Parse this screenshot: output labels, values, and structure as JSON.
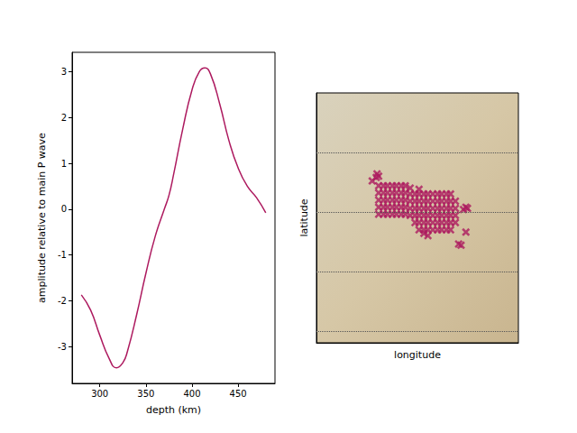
{
  "chart_data": [
    {
      "type": "line",
      "xlabel": "depth (km)",
      "ylabel": "amplitude relative to main P wave",
      "color": "#ad1a5f",
      "x": [
        280,
        290,
        300,
        310,
        318,
        325,
        330,
        340,
        350,
        360,
        370,
        375,
        380,
        390,
        400,
        408,
        414,
        420,
        430,
        440,
        450,
        460,
        470,
        480
      ],
      "values": [
        -1.87,
        -2.2,
        -2.75,
        -3.25,
        -3.46,
        -3.35,
        -3.1,
        -2.3,
        -1.4,
        -0.6,
        0.0,
        0.3,
        0.75,
        1.75,
        2.6,
        3.0,
        3.08,
        2.95,
        2.3,
        1.5,
        0.9,
        0.5,
        0.25,
        -0.08
      ],
      "xlim": [
        270,
        490
      ],
      "ylim": [
        -3.8,
        3.42
      ],
      "xticks": [
        300,
        350,
        400,
        450
      ],
      "yticks": [
        -3,
        -2,
        -1,
        0,
        1,
        2,
        3
      ]
    },
    {
      "type": "scatter",
      "xlabel": "longitude",
      "ylabel": "latitude",
      "color": "#ad1a5f",
      "marker": "x",
      "xlim": [
        -125,
        -100
      ],
      "ylim": [
        29,
        50
      ],
      "xticks": [],
      "yticks": [
        30,
        35,
        40,
        45
      ],
      "grid": true,
      "tick_labels": false,
      "points": [
        [
          -117.3,
          42.2
        ],
        [
          -116.7,
          42.2
        ],
        [
          -116.2,
          42.2
        ],
        [
          -115.6,
          42.2
        ],
        [
          -115.1,
          42.2
        ],
        [
          -114.5,
          42.2
        ],
        [
          -114.0,
          42.2
        ],
        [
          -117.3,
          41.6
        ],
        [
          -116.7,
          41.6
        ],
        [
          -116.2,
          41.6
        ],
        [
          -115.6,
          41.6
        ],
        [
          -115.1,
          41.6
        ],
        [
          -114.5,
          41.6
        ],
        [
          -114.0,
          41.6
        ],
        [
          -117.3,
          41.0
        ],
        [
          -116.7,
          41.0
        ],
        [
          -116.2,
          41.0
        ],
        [
          -115.6,
          41.0
        ],
        [
          -115.1,
          41.0
        ],
        [
          -114.5,
          41.0
        ],
        [
          -114.0,
          41.0
        ],
        [
          -117.3,
          40.4
        ],
        [
          -116.7,
          40.4
        ],
        [
          -116.2,
          40.4
        ],
        [
          -115.6,
          40.4
        ],
        [
          -115.1,
          40.4
        ],
        [
          -114.5,
          40.4
        ],
        [
          -114.0,
          40.4
        ],
        [
          -117.3,
          39.8
        ],
        [
          -116.7,
          39.8
        ],
        [
          -116.2,
          39.8
        ],
        [
          -115.6,
          39.8
        ],
        [
          -115.1,
          39.8
        ],
        [
          -114.5,
          39.8
        ],
        [
          -114.0,
          39.8
        ],
        [
          -113.4,
          41.5
        ],
        [
          -112.8,
          41.5
        ],
        [
          -112.3,
          41.5
        ],
        [
          -111.7,
          41.5
        ],
        [
          -111.2,
          41.5
        ],
        [
          -110.6,
          41.5
        ],
        [
          -110.0,
          41.5
        ],
        [
          -109.5,
          41.5
        ],
        [
          -108.9,
          41.5
        ],
        [
          -108.4,
          41.5
        ],
        [
          -113.4,
          40.9
        ],
        [
          -112.8,
          40.9
        ],
        [
          -112.3,
          40.9
        ],
        [
          -111.7,
          40.9
        ],
        [
          -111.2,
          40.9
        ],
        [
          -110.6,
          40.9
        ],
        [
          -110.0,
          40.9
        ],
        [
          -109.5,
          40.9
        ],
        [
          -108.9,
          40.9
        ],
        [
          -108.4,
          40.9
        ],
        [
          -107.8,
          40.9
        ],
        [
          -113.4,
          40.3
        ],
        [
          -112.8,
          40.3
        ],
        [
          -112.3,
          40.3
        ],
        [
          -111.7,
          40.3
        ],
        [
          -111.2,
          40.3
        ],
        [
          -110.6,
          40.3
        ],
        [
          -110.0,
          40.3
        ],
        [
          -109.5,
          40.3
        ],
        [
          -108.9,
          40.3
        ],
        [
          -108.4,
          40.3
        ],
        [
          -107.8,
          40.3
        ],
        [
          -113.4,
          39.7
        ],
        [
          -112.8,
          39.7
        ],
        [
          -112.3,
          39.7
        ],
        [
          -111.7,
          39.7
        ],
        [
          -111.2,
          39.7
        ],
        [
          -110.6,
          39.7
        ],
        [
          -110.0,
          39.7
        ],
        [
          -109.5,
          39.7
        ],
        [
          -108.9,
          39.7
        ],
        [
          -108.4,
          39.7
        ],
        [
          -107.8,
          39.7
        ],
        [
          -112.8,
          39.1
        ],
        [
          -112.3,
          39.1
        ],
        [
          -111.7,
          39.1
        ],
        [
          -111.2,
          39.1
        ],
        [
          -110.6,
          39.1
        ],
        [
          -110.0,
          39.1
        ],
        [
          -109.5,
          39.1
        ],
        [
          -108.9,
          39.1
        ],
        [
          -108.4,
          39.1
        ],
        [
          -107.8,
          39.1
        ],
        [
          -112.3,
          38.5
        ],
        [
          -111.7,
          38.5
        ],
        [
          -111.2,
          38.5
        ],
        [
          -110.6,
          38.5
        ],
        [
          -110.0,
          38.5
        ],
        [
          -109.5,
          38.5
        ],
        [
          -108.9,
          38.5
        ],
        [
          -108.4,
          38.5
        ],
        [
          -117.5,
          43.2
        ],
        [
          -117.3,
          43.0
        ],
        [
          -117.6,
          42.9
        ],
        [
          -118.1,
          42.6
        ],
        [
          -113.4,
          42.0
        ],
        [
          -112.3,
          41.9
        ],
        [
          -106.5,
          40.4
        ],
        [
          -106.8,
          40.2
        ],
        [
          -106.3,
          40.3
        ],
        [
          -106.5,
          38.3
        ],
        [
          -107.4,
          37.3
        ],
        [
          -107.1,
          37.2
        ],
        [
          -111.7,
          38.2
        ],
        [
          -111.2,
          38.0
        ]
      ]
    }
  ]
}
